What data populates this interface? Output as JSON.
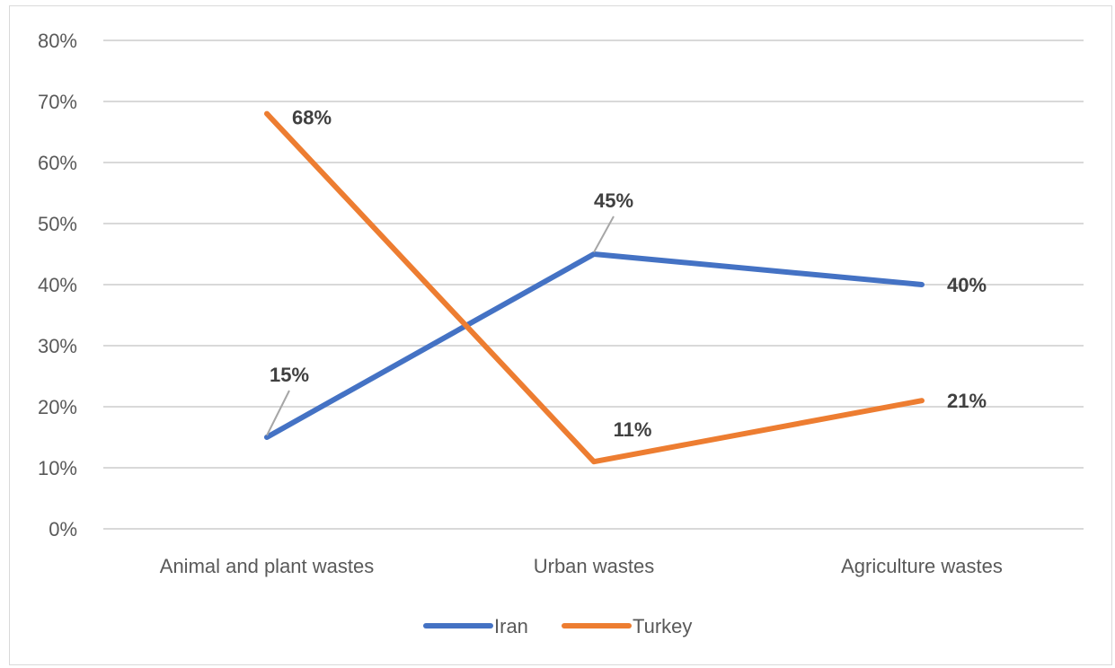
{
  "chart_data": {
    "type": "line",
    "title": "",
    "xlabel": "",
    "ylabel": "",
    "categories": [
      "Animal and plant wastes",
      "Urban wastes",
      "Agriculture wastes"
    ],
    "series": [
      {
        "name": "Iran",
        "values": [
          0.15,
          0.45,
          0.4
        ],
        "labels": [
          "15%",
          "45%",
          "40%"
        ],
        "color": "#4472C4"
      },
      {
        "name": "Turkey",
        "values": [
          0.68,
          0.11,
          0.21
        ],
        "labels": [
          "68%",
          "11%",
          "21%"
        ],
        "color": "#ED7D31"
      }
    ],
    "ylim": [
      0,
      0.8
    ],
    "yticks": [
      "0%",
      "10%",
      "20%",
      "30%",
      "40%",
      "50%",
      "60%",
      "70%",
      "80%"
    ],
    "grid": true,
    "legend": "bottom",
    "gridline_color": "#d9d9d9",
    "callout_color": "#a6a6a6"
  }
}
